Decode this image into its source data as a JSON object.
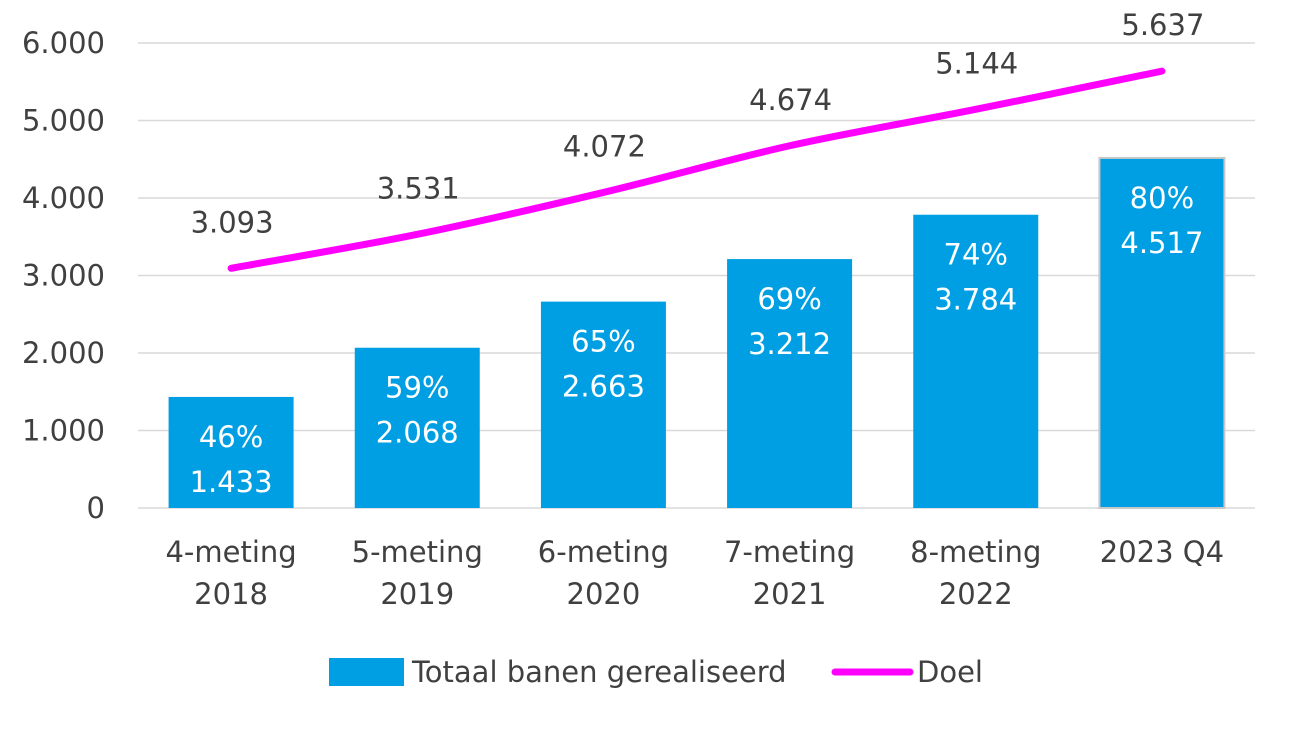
{
  "chart_data": {
    "type": "bar",
    "title": "",
    "xlabel": "",
    "ylabel": "",
    "categories": [
      [
        "4-meting",
        "2018"
      ],
      [
        "5-meting",
        "2019"
      ],
      [
        "6-meting",
        "2020"
      ],
      [
        "7-meting",
        "2021"
      ],
      [
        "8-meting",
        "2022"
      ],
      [
        "2023 Q4"
      ]
    ],
    "ylim": [
      0,
      6000
    ],
    "yticks": [
      0,
      1000,
      2000,
      3000,
      4000,
      5000,
      6000
    ],
    "ytick_labels": [
      "0",
      "1.000",
      "2.000",
      "3.000",
      "4.000",
      "5.000",
      "6.000"
    ],
    "grid": true,
    "legend_position": "bottom",
    "series": [
      {
        "name": "Totaal banen gerealiseerd",
        "kind": "bar",
        "color": "#009FE3",
        "values": [
          1433,
          2068,
          2663,
          3212,
          3784,
          4517
        ],
        "labels": [
          "1.433",
          "2.068",
          "2.663",
          "3.212",
          "3.784",
          "4.517"
        ],
        "percent_labels": [
          "46%",
          "59%",
          "65%",
          "69%",
          "74%",
          "80%"
        ]
      },
      {
        "name": "Doel",
        "kind": "line",
        "color": "#FF00FF",
        "values": [
          3093,
          3531,
          4072,
          4674,
          5144,
          5637
        ],
        "labels": [
          "3.093",
          "3.531",
          "4.072",
          "4.674",
          "5.144",
          "5.637"
        ]
      }
    ]
  }
}
